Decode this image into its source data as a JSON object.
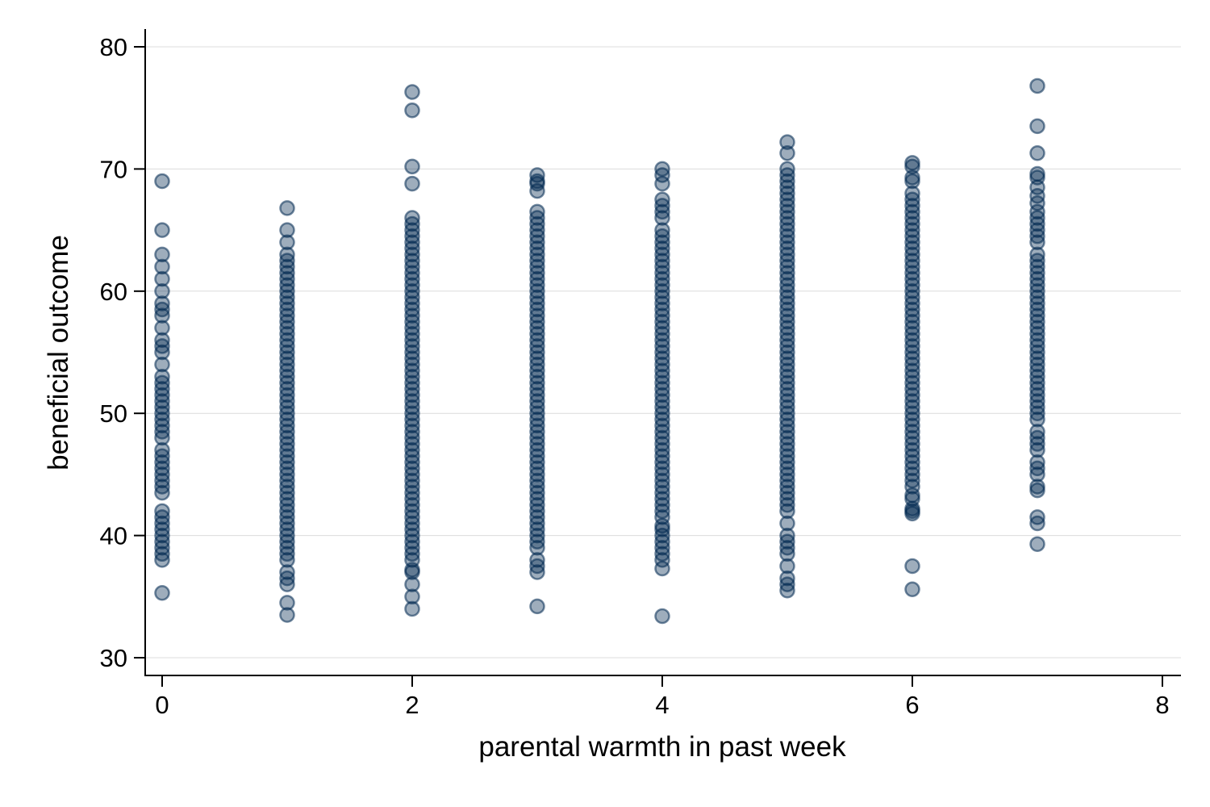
{
  "chart_data": {
    "type": "scatter",
    "title": "",
    "xlabel": "parental warmth in past week",
    "ylabel": "beneficial outcome",
    "xlim": [
      0,
      8
    ],
    "ylim": [
      30,
      80
    ],
    "xticks": [
      0,
      2,
      4,
      6,
      8
    ],
    "yticks": [
      30,
      40,
      50,
      60,
      70,
      80
    ],
    "grid": "horizontal",
    "legend": "none",
    "marker_color": "#002850",
    "marker_opacity": 0.38,
    "columns": [
      {
        "x": 0,
        "y": [
          69,
          65,
          63,
          62,
          61,
          60,
          59,
          58.5,
          58,
          57,
          56,
          55.5,
          55,
          54,
          53,
          52.5,
          52,
          51.5,
          51,
          50.5,
          50,
          49.5,
          49,
          48.5,
          48,
          47,
          46.5,
          46,
          45.5,
          45,
          44.5,
          44,
          43.5,
          42,
          41.5,
          41,
          40.5,
          40,
          39.5,
          39,
          38.5,
          38,
          35.3
        ]
      },
      {
        "x": 1,
        "y": [
          66.8,
          65,
          64,
          63,
          62.5,
          62,
          61.5,
          61,
          60.5,
          60,
          59.5,
          59,
          58.5,
          58,
          57.5,
          57,
          56.5,
          56,
          55.5,
          55,
          54.5,
          54,
          53.5,
          53,
          52.5,
          52,
          51.5,
          51,
          50.5,
          50,
          49.5,
          49,
          48.5,
          48,
          47.5,
          47,
          46.5,
          46,
          45.5,
          45,
          44.5,
          44,
          43.5,
          43,
          42.5,
          42,
          41.5,
          41,
          40.5,
          40,
          39.5,
          39,
          38.5,
          38,
          37,
          36.5,
          36,
          34.5,
          33.5
        ]
      },
      {
        "x": 2,
        "y": [
          76.3,
          74.8,
          70.2,
          68.8,
          66,
          65.5,
          65,
          64.5,
          64,
          63.5,
          63,
          62.5,
          62,
          61.5,
          61,
          60.5,
          60,
          59.5,
          59,
          58.5,
          58,
          57.5,
          57,
          56.5,
          56,
          55.5,
          55,
          54.5,
          54,
          53.5,
          53,
          52.5,
          52,
          51.5,
          51,
          50.5,
          50,
          49.5,
          49,
          48.5,
          48,
          47.5,
          47,
          46.5,
          46,
          45.5,
          45,
          44.5,
          44,
          43.5,
          43,
          42.5,
          42,
          41.5,
          41,
          40.5,
          40,
          39.5,
          39,
          38.5,
          38,
          37.2,
          37,
          36,
          35,
          34
        ]
      },
      {
        "x": 3,
        "y": [
          69.5,
          69,
          68.8,
          68.2,
          66.5,
          66,
          65.5,
          65,
          64.5,
          64,
          63.5,
          63,
          62.5,
          62,
          61.5,
          61,
          60.5,
          60,
          59.5,
          59,
          58.5,
          58,
          57.5,
          57,
          56.5,
          56,
          55.5,
          55,
          54.5,
          54,
          53.5,
          53,
          52.5,
          52,
          51.5,
          51,
          50.5,
          50,
          49.5,
          49,
          48.5,
          48,
          47.5,
          47,
          46.5,
          46,
          45.5,
          45,
          44.5,
          44,
          43.5,
          43,
          42.5,
          42,
          41.5,
          41,
          40.5,
          40,
          39.5,
          39,
          38,
          37.5,
          37,
          34.2
        ]
      },
      {
        "x": 4,
        "y": [
          70,
          69.5,
          68.8,
          67.5,
          67,
          66.5,
          66,
          65,
          64.5,
          64,
          63.5,
          63,
          62.5,
          62,
          61.5,
          61,
          60.5,
          60,
          59.5,
          59,
          58.5,
          58,
          57.5,
          57,
          56.5,
          56,
          55.5,
          55,
          54.5,
          54,
          53.5,
          53,
          52.5,
          52,
          51.5,
          51,
          50.5,
          50,
          49.5,
          49,
          48.5,
          48,
          47.5,
          47,
          46.5,
          46,
          45.5,
          45,
          44.5,
          44,
          43.5,
          43,
          42.5,
          42,
          41.5,
          40.8,
          40.5,
          40,
          39.5,
          39,
          38.5,
          38,
          37.3,
          33.4
        ]
      },
      {
        "x": 5,
        "y": [
          72.2,
          71.3,
          70,
          69.5,
          69,
          68.5,
          68,
          67.5,
          67,
          66.5,
          66,
          65.5,
          65,
          64.5,
          64,
          63.5,
          63,
          62.5,
          62,
          61.5,
          61,
          60.5,
          60,
          59.5,
          59,
          58.5,
          58,
          57.5,
          57,
          56.5,
          56,
          55.5,
          55,
          54.5,
          54,
          53.5,
          53,
          52.5,
          52,
          51.5,
          51,
          50.5,
          50,
          49.5,
          49,
          48.5,
          48,
          47.5,
          47,
          46.5,
          46,
          45.5,
          45,
          44.5,
          44,
          43.5,
          43,
          42.5,
          42,
          41,
          40,
          39.5,
          39,
          38.5,
          37.5,
          36.5,
          36,
          35.5
        ]
      },
      {
        "x": 6,
        "y": [
          70.5,
          70.2,
          69.3,
          69,
          68,
          67.5,
          67,
          66.5,
          66,
          65.5,
          65,
          64.5,
          64,
          63.5,
          63,
          62.5,
          62,
          61.5,
          61,
          60.5,
          60,
          59.5,
          59,
          58.5,
          58,
          57.5,
          57,
          56.5,
          56,
          55.5,
          55,
          54.5,
          54,
          53.5,
          53,
          52.5,
          52,
          51.5,
          51,
          50.5,
          50,
          49.5,
          49,
          48.5,
          48,
          47.5,
          47,
          46.5,
          46,
          45.5,
          45,
          44.5,
          44,
          43.3,
          43,
          42.2,
          42,
          41.8,
          37.5,
          35.6
        ]
      },
      {
        "x": 7,
        "y": [
          76.8,
          73.5,
          71.3,
          69.6,
          69.3,
          68.5,
          67.8,
          67.2,
          66.5,
          66,
          65.5,
          65,
          64.5,
          64,
          63,
          62.5,
          62,
          61.5,
          61,
          60.5,
          60,
          59.5,
          59,
          58.5,
          58,
          57.5,
          57,
          56.5,
          56,
          55.5,
          55,
          54.5,
          54,
          53.5,
          53,
          52.5,
          52,
          51.5,
          51,
          50.5,
          50,
          49.5,
          48.5,
          48,
          47.5,
          47,
          46,
          45.5,
          45,
          44,
          43.7,
          41.5,
          41,
          39.3
        ]
      }
    ]
  }
}
